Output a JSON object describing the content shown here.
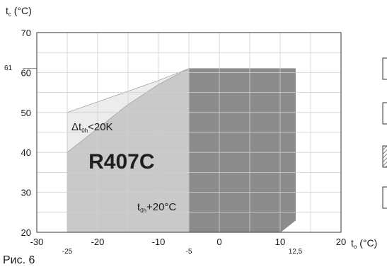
{
  "chart_data": {
    "type": "area",
    "title": "",
    "xlabel": {
      "main": "t",
      "sub": "o",
      "unit": "(°C)"
    },
    "ylabel": {
      "main": "t",
      "sub": "c",
      "unit": "(°C)"
    },
    "xlim": [
      -30,
      20
    ],
    "ylim": [
      20,
      70
    ],
    "grid": true,
    "x_ticks": [
      "-30",
      "-20",
      "-10",
      "0",
      "10",
      "20"
    ],
    "x_tick_values": [
      -30,
      -20,
      -10,
      0,
      10,
      20
    ],
    "x_minor_ticks": [
      "-25",
      "-5",
      "12,5"
    ],
    "x_minor_tick_values": [
      -25,
      -5,
      12.5
    ],
    "y_ticks": [
      "20",
      "30",
      "40",
      "50",
      "60",
      "70"
    ],
    "y_tick_values": [
      20,
      30,
      40,
      50,
      60,
      70
    ],
    "y_minor_ticks": [
      "61"
    ],
    "y_minor_tick_values": [
      61
    ],
    "regions": [
      {
        "id": "superheat-limit",
        "color": "#ececec",
        "points": [
          [
            -25,
            40
          ],
          [
            -25,
            50
          ],
          [
            -10,
            58
          ],
          [
            -5,
            61
          ],
          [
            -5,
            20
          ],
          [
            -25,
            20
          ]
        ]
      },
      {
        "id": "main-envelope",
        "color": "#c9c9c9",
        "points": [
          [
            -25,
            20
          ],
          [
            -25,
            40
          ],
          [
            -15,
            52
          ],
          [
            -10,
            57
          ],
          [
            -5,
            61
          ],
          [
            -5,
            20
          ]
        ]
      },
      {
        "id": "dark-envelope",
        "color": "#8c8c8c",
        "points": [
          [
            -5,
            20
          ],
          [
            -5,
            61
          ],
          [
            12.5,
            61
          ],
          [
            12.5,
            23
          ],
          [
            10,
            20
          ]
        ]
      }
    ],
    "annotations": {
      "refrigerant": "R407C",
      "superheat": {
        "prefix": "Δt",
        "sub": "0h",
        "suffix": "<20K"
      },
      "return_gas": {
        "prefix": "t",
        "sub": "0h",
        "suffix": "+20°C"
      }
    }
  },
  "legend_boxes": [
    {
      "fill": "#ffffff",
      "hatched": false
    },
    {
      "fill": "#ffffff",
      "hatched": false
    },
    {
      "fill": "#ffffff",
      "hatched": true
    },
    {
      "fill": "#ffffff",
      "hatched": false
    }
  ],
  "caption": "Рис. 6"
}
